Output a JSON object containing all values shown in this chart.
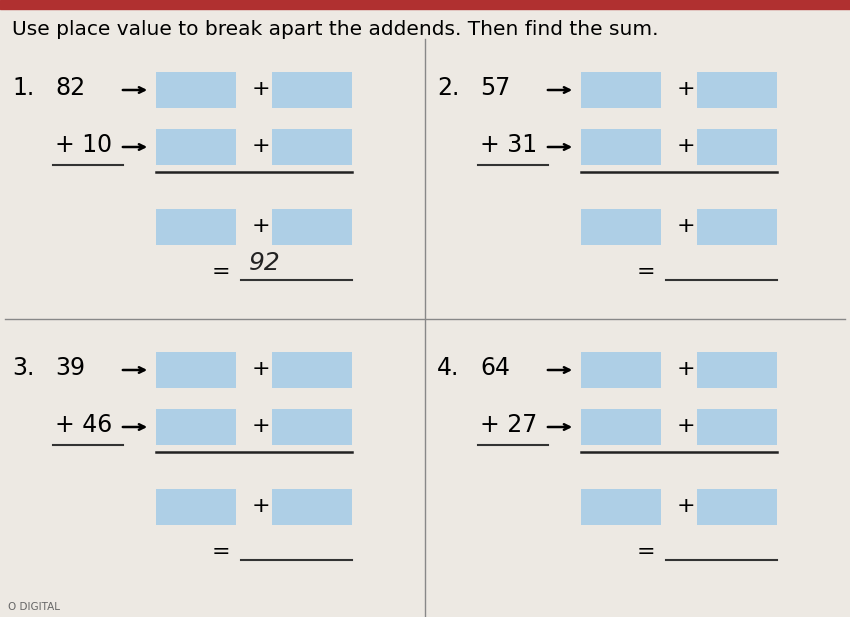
{
  "title": "Use place value to break apart the addends. Then find the sum.",
  "bg_color": "#ede9e3",
  "box_color": "#aecfe6",
  "divider_color": "#888888",
  "problems": [
    {
      "num": "1.",
      "addend1": "82",
      "addend2": "+ 10",
      "answer": "92",
      "show_answer": true
    },
    {
      "num": "2.",
      "addend1": "57",
      "addend2": "+ 31",
      "answer": "",
      "show_answer": false
    },
    {
      "num": "3.",
      "addend1": "39",
      "addend2": "+ 46",
      "answer": "",
      "show_answer": false
    },
    {
      "num": "4.",
      "addend1": "64",
      "addend2": "+ 27",
      "answer": "",
      "show_answer": false
    }
  ],
  "font_size_title": 14.5,
  "font_size_num": 17,
  "font_size_addend": 17,
  "font_size_plus": 16,
  "font_size_equals": 16,
  "font_size_answer": 18
}
